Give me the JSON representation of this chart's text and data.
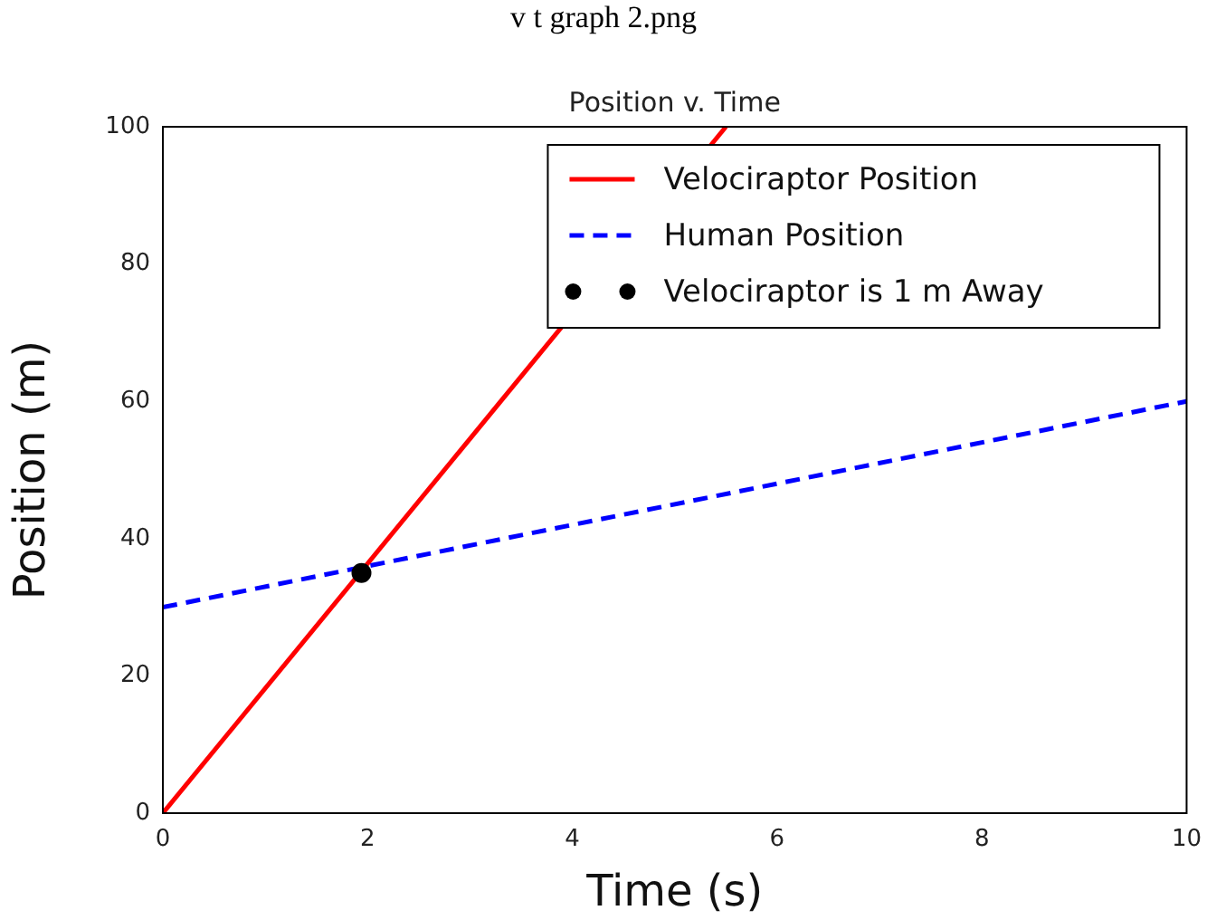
{
  "chart_data": {
    "type": "line",
    "title": "Position v. Time",
    "xlabel": "Time (s)",
    "ylabel": "Position (m)",
    "annotations": [
      "v t graph 2.png"
    ],
    "xlim": [
      0,
      10
    ],
    "xticks": [
      0,
      2,
      4,
      6,
      8,
      10
    ],
    "ylim": [
      0,
      100
    ],
    "yticks": [
      0,
      20,
      40,
      60,
      80,
      100
    ],
    "grid": false,
    "legend": "top right",
    "series": [
      {
        "name": "Velociraptor Position",
        "color": "#ff0000",
        "x": [
          0,
          5.5
        ],
        "values": [
          0,
          100
        ],
        "line_style": "solid",
        "marker": "none"
      },
      {
        "name": "Human Position",
        "color": "#0000ff",
        "x": [
          0,
          10
        ],
        "values": [
          30,
          60
        ],
        "line_style": "dashed",
        "marker": "none"
      },
      {
        "name": "Velociraptor is 1 m Away",
        "type": "scatter",
        "color": "#000000",
        "x": [
          1.94
        ],
        "values": [
          35
        ],
        "marker": "circle"
      }
    ]
  }
}
